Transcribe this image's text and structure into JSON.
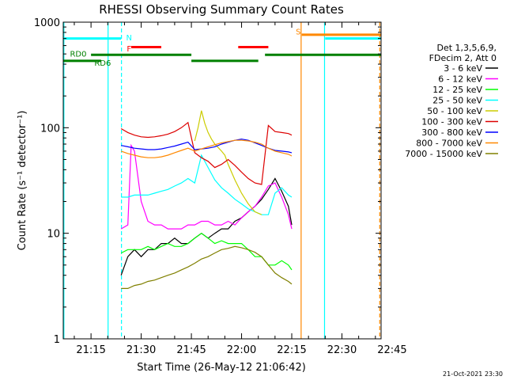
{
  "chart_data": {
    "type": "line",
    "title": "RHESSI Observing Summary Count Rates",
    "xlabel": "Start Time (26-May-12 21:06:42)",
    "ylabel": "Count Rate (s⁻¹ detector⁻¹)",
    "yscale": "log",
    "ylim": [
      1,
      1000
    ],
    "xlim_minutes": [
      1266.7,
      1361.7
    ],
    "x_ticks": [
      {
        "min": 1275,
        "label": "21:15"
      },
      {
        "min": 1290,
        "label": "21:30"
      },
      {
        "min": 1305,
        "label": "21:45"
      },
      {
        "min": 1320,
        "label": "22:00"
      },
      {
        "min": 1335,
        "label": "22:15"
      },
      {
        "min": 1350,
        "label": "22:30"
      },
      {
        "min": 1365,
        "label": "22:45"
      }
    ],
    "y_ticks": [
      {
        "v": 1,
        "label": "1"
      },
      {
        "v": 10,
        "label": "10"
      },
      {
        "v": 100,
        "label": "100"
      },
      {
        "v": 1000,
        "label": "1000"
      }
    ],
    "legend": {
      "placement": "right",
      "header": [
        "Det 1,3,5,6,9,",
        "FDecim 2, Att 0"
      ]
    },
    "series": [
      {
        "name": "3 - 6 keV",
        "color": "#000000",
        "x": [
          1280,
          1282,
          1284,
          1286,
          1288,
          1290,
          1292,
          1294,
          1296,
          1298,
          1300,
          1302,
          1304,
          1306,
          1308,
          1310,
          1312,
          1314,
          1316,
          1318,
          1320,
          1322,
          1324,
          1326,
          1328,
          1330,
          1332,
          1334,
          1335
        ],
        "y": [
          null,
          null,
          4,
          6,
          7,
          6,
          7,
          7,
          8,
          8,
          9,
          8,
          8,
          9,
          10,
          9,
          10,
          11,
          11,
          13,
          14,
          16,
          18,
          21,
          26,
          33,
          25,
          18,
          12
        ]
      },
      {
        "name": "6 - 12 keV",
        "color": "#ff00ff",
        "x": [
          1280,
          1282,
          1284,
          1286,
          1287,
          1288,
          1290,
          1292,
          1294,
          1296,
          1298,
          1300,
          1302,
          1304,
          1306,
          1308,
          1310,
          1312,
          1314,
          1316,
          1318,
          1320,
          1322,
          1324,
          1326,
          1328,
          1330,
          1332,
          1334,
          1335
        ],
        "y": [
          null,
          null,
          11,
          12,
          68,
          60,
          20,
          13,
          12,
          12,
          11,
          11,
          11,
          12,
          12,
          13,
          13,
          12,
          12,
          13,
          12,
          14,
          16,
          18,
          22,
          28,
          30,
          22,
          15,
          11
        ]
      },
      {
        "name": "12 - 25 keV",
        "color": "#00ff00",
        "x": [
          1280,
          1282,
          1284,
          1286,
          1288,
          1290,
          1292,
          1294,
          1296,
          1298,
          1300,
          1302,
          1304,
          1306,
          1308,
          1310,
          1312,
          1314,
          1316,
          1318,
          1320,
          1322,
          1324,
          1326,
          1328,
          1330,
          1332,
          1334,
          1335
        ],
        "y": [
          null,
          null,
          6.5,
          7,
          7,
          7,
          7.5,
          7,
          7.5,
          8,
          7.5,
          7.5,
          8,
          9,
          10,
          9,
          8,
          8.5,
          8,
          8,
          8,
          7,
          6,
          6,
          5,
          5,
          5.5,
          5,
          4.5
        ]
      },
      {
        "name": "25 - 50 keV",
        "color": "#00ffff",
        "x": [
          1280,
          1282,
          1284,
          1286,
          1288,
          1290,
          1292,
          1294,
          1296,
          1298,
          1300,
          1302,
          1304,
          1306,
          1308,
          1310,
          1312,
          1314,
          1316,
          1318,
          1320,
          1322,
          1324,
          1326,
          1328,
          1330,
          1332,
          1334,
          1335
        ],
        "y": [
          null,
          null,
          22,
          22,
          23,
          23,
          23,
          24,
          25,
          26,
          28,
          30,
          33,
          30,
          55,
          42,
          32,
          27,
          24,
          21,
          19,
          17,
          16,
          15,
          15,
          24,
          27,
          23,
          22
        ]
      },
      {
        "name": "50 - 100 keV",
        "color": "#cccc00",
        "x": [
          1306,
          1307,
          1308,
          1309,
          1310,
          1311,
          1312,
          1313,
          1314,
          1315,
          1316,
          1318,
          1320,
          1322,
          1324,
          1326
        ],
        "y": [
          75,
          100,
          145,
          110,
          90,
          78,
          70,
          65,
          60,
          55,
          45,
          32,
          24,
          19,
          16,
          15
        ]
      },
      {
        "name": "100 - 300 keV",
        "color": "#dd0000",
        "x": [
          1280,
          1282,
          1284,
          1286,
          1288,
          1290,
          1292,
          1294,
          1296,
          1298,
          1300,
          1302,
          1304,
          1306,
          1308,
          1310,
          1312,
          1314,
          1316,
          1318,
          1320,
          1322,
          1324,
          1326,
          1328,
          1330,
          1332,
          1334,
          1335
        ],
        "y": [
          null,
          null,
          98,
          90,
          85,
          82,
          81,
          82,
          84,
          87,
          92,
          100,
          112,
          58,
          52,
          48,
          42,
          45,
          50,
          44,
          38,
          33,
          30,
          29,
          105,
          92,
          90,
          88,
          85
        ]
      },
      {
        "name": "300 - 800 keV",
        "color": "#0000ff",
        "x": [
          1280,
          1282,
          1284,
          1286,
          1288,
          1290,
          1292,
          1294,
          1296,
          1298,
          1300,
          1302,
          1304,
          1306,
          1308,
          1310,
          1312,
          1314,
          1316,
          1318,
          1320,
          1322,
          1324,
          1326,
          1328,
          1330,
          1332,
          1334,
          1335
        ],
        "y": [
          null,
          null,
          68,
          66,
          64,
          63,
          62,
          62,
          63,
          65,
          67,
          70,
          73,
          62,
          63,
          64,
          66,
          70,
          73,
          76,
          78,
          76,
          72,
          68,
          64,
          61,
          60,
          59,
          58
        ]
      },
      {
        "name": "800 - 7000 keV",
        "color": "#ff8800",
        "x": [
          1280,
          1282,
          1284,
          1286,
          1288,
          1290,
          1292,
          1294,
          1296,
          1298,
          1300,
          1302,
          1304,
          1306,
          1308,
          1310,
          1312,
          1314,
          1316,
          1318,
          1320,
          1322,
          1324,
          1326,
          1328,
          1330,
          1332,
          1334,
          1335
        ],
        "y": [
          null,
          null,
          60,
          57,
          55,
          53,
          52,
          52,
          53,
          55,
          58,
          61,
          64,
          60,
          63,
          66,
          69,
          72,
          74,
          76,
          76,
          75,
          73,
          70,
          64,
          60,
          58,
          56,
          54
        ]
      },
      {
        "name": "7000 - 15000 keV",
        "color": "#808000",
        "x": [
          1280,
          1282,
          1284,
          1286,
          1288,
          1290,
          1292,
          1294,
          1296,
          1298,
          1300,
          1302,
          1304,
          1306,
          1308,
          1310,
          1312,
          1314,
          1316,
          1318,
          1320,
          1322,
          1324,
          1326,
          1328,
          1330,
          1332,
          1334,
          1335
        ],
        "y": [
          null,
          null,
          3,
          3,
          3.2,
          3.3,
          3.5,
          3.6,
          3.8,
          4,
          4.2,
          4.5,
          4.8,
          5.2,
          5.7,
          6,
          6.5,
          7,
          7.2,
          7.5,
          7.3,
          7,
          6.6,
          6,
          5,
          4.2,
          3.8,
          3.5,
          3.3
        ]
      }
    ],
    "state_bars": [
      {
        "label": "N",
        "color": "#00ffff",
        "y": 700,
        "segments": [
          [
            1266.7,
            1284
          ]
        ],
        "label_x": 1285.5,
        "label_y": 720
      },
      {
        "label": "",
        "color": "#00ffff",
        "y": 700,
        "segments": [
          [
            1345,
            1361.7
          ]
        ]
      },
      {
        "label": "F",
        "color": "#ff0000",
        "y": 580,
        "segments": [
          [
            1287,
            1296
          ],
          [
            1319,
            1328
          ]
        ],
        "label_x": 1285.7,
        "label_y": 565
      },
      {
        "label": "S",
        "color": "#ff8800",
        "y": 760,
        "segments": [
          [
            1338,
            1361.7
          ]
        ],
        "label_x": 1336.2,
        "label_y": 820
      },
      {
        "label": "RD0",
        "color": "#008000",
        "y": 490,
        "segments": [
          [
            1275,
            1305
          ],
          [
            1327,
            1361.7
          ]
        ],
        "label_x": 1268.7,
        "label_y": 505
      },
      {
        "label": "RD6",
        "color": "#008000",
        "y": 430,
        "segments": [
          [
            1266.7,
            1278
          ],
          [
            1305,
            1325
          ]
        ],
        "label_x": 1276,
        "label_y": 415
      }
    ],
    "vertical_lines": [
      {
        "min": 1266.9,
        "color": "#00ffff",
        "dashed": false
      },
      {
        "min": 1280.1,
        "color": "#00ffff",
        "dashed": false
      },
      {
        "min": 1284.1,
        "color": "#00ffff",
        "dashed": true
      },
      {
        "min": 1337.8,
        "color": "#ff8800",
        "dashed": false
      },
      {
        "min": 1344.8,
        "color": "#00ffff",
        "dashed": false
      },
      {
        "min": 1361.3,
        "color": "#ff8800",
        "dashed": true
      }
    ]
  },
  "footer": {
    "timestamp": "21-Oct-2021 23:30"
  }
}
